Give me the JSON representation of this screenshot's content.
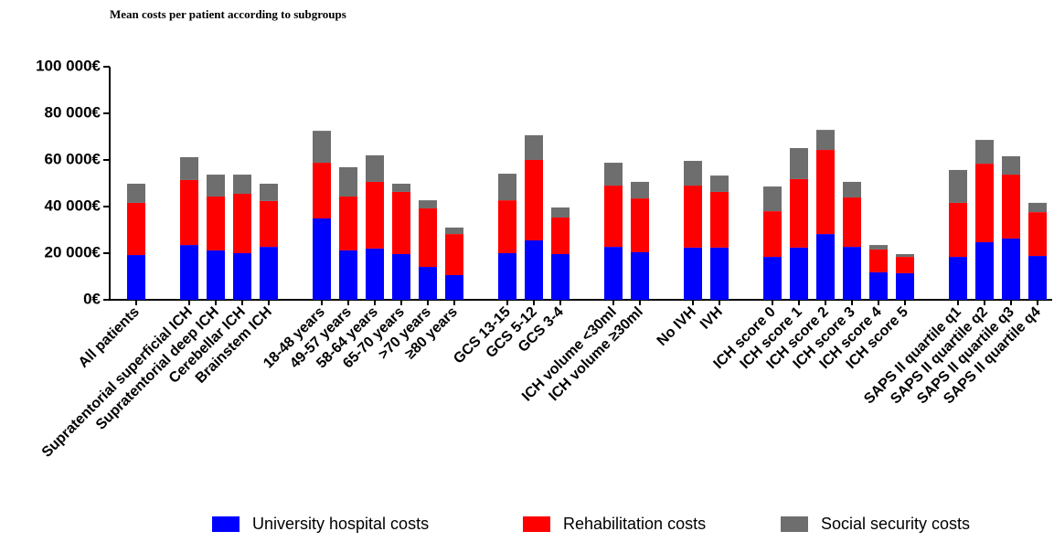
{
  "chart_data": {
    "type": "stacked_bar",
    "title": "Mean costs per patient according to subgroups",
    "categories": [
      "All patients",
      null,
      "Supratentorial superficial ICH",
      "Supratentorial deep ICH",
      "Cerebellar ICH",
      "Brainstem ICH",
      null,
      "18-48 years",
      "49-57 years",
      "58-64 years",
      "65-70 years",
      ">70 years",
      "≥80 years",
      null,
      "GCS 13-15",
      "GCS 5-12",
      "GCS 3-4",
      null,
      "ICH volume <30ml",
      "ICH volume ≥30ml",
      null,
      "No IVH",
      "IVH",
      null,
      "ICH score 0",
      "ICH score 1",
      "ICH score 2",
      "ICH score 3",
      "ICH score 4",
      "ICH score 5",
      null,
      "SAPS II quartile q1",
      "SAPS II quartile q2",
      "SAPS II quartile q3",
      "SAPS II quartile q4"
    ],
    "series": [
      {
        "name": "University hospital costs",
        "color": "#0000ff",
        "values": [
          19200,
          null,
          23500,
          21200,
          20000,
          22700,
          null,
          34900,
          21200,
          22000,
          19600,
          14100,
          10600,
          null,
          20000,
          25500,
          19600,
          null,
          22700,
          20400,
          null,
          22400,
          22400,
          null,
          18400,
          22400,
          28200,
          22700,
          11800,
          11400,
          null,
          18400,
          24700,
          26300,
          18800
        ]
      },
      {
        "name": "Rehabilitation costs",
        "color": "#ff0000",
        "values": [
          22400,
          null,
          27900,
          23100,
          25500,
          19700,
          null,
          23900,
          23100,
          28600,
          26700,
          25100,
          17600,
          null,
          22700,
          34500,
          15700,
          null,
          26300,
          23100,
          null,
          26600,
          23900,
          null,
          19600,
          29400,
          36100,
          21200,
          9800,
          7000,
          null,
          23200,
          33700,
          27400,
          18800
        ]
      },
      {
        "name": "Social security costs",
        "color": "#6e6e6e",
        "values": [
          8200,
          null,
          9800,
          9400,
          8200,
          7400,
          null,
          13700,
          12600,
          11400,
          3500,
          3500,
          2800,
          null,
          11400,
          10600,
          4300,
          null,
          9800,
          7100,
          null,
          10600,
          7000,
          null,
          10600,
          13300,
          8600,
          6700,
          1900,
          1200,
          null,
          14100,
          10200,
          7900,
          4000
        ]
      }
    ],
    "ylim": [
      0,
      100000
    ],
    "yticks": [
      {
        "value": 0,
        "label": "0€"
      },
      {
        "value": 20000,
        "label": "20 000€"
      },
      {
        "value": 40000,
        "label": "40 000€"
      },
      {
        "value": 60000,
        "label": "60 000€"
      },
      {
        "value": 80000,
        "label": "80 000€"
      },
      {
        "value": 100000,
        "label": "100 000€"
      }
    ],
    "legend": "bottom"
  }
}
